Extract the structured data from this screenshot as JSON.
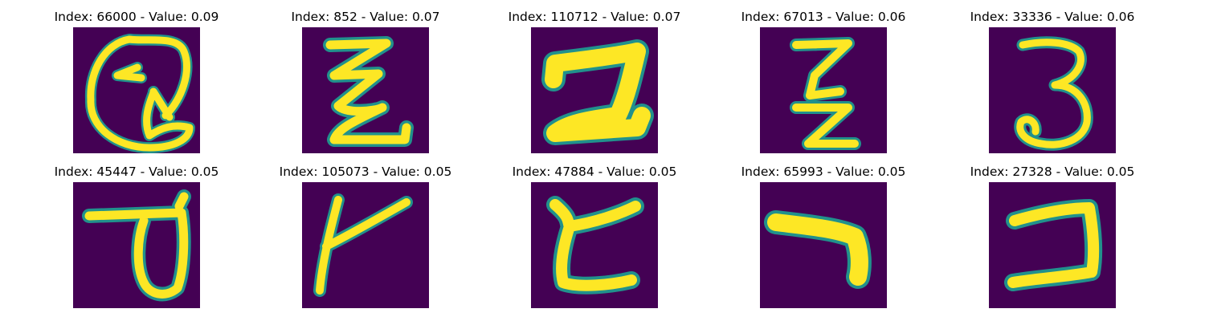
{
  "panels": [
    {
      "title": "Index: 66000 - Value: 0.09",
      "index": 66000,
      "value": 0.09,
      "glyph": "handwritten-Q-icon"
    },
    {
      "title": "Index: 852 - Value: 0.07",
      "index": 852,
      "value": 0.07,
      "glyph": "handwritten-zigzag-icon"
    },
    {
      "title": "Index: 110712 - Value: 0.07",
      "index": 110712,
      "value": 0.07,
      "glyph": "handwritten-bold-stroke-icon"
    },
    {
      "title": "Index: 67013 - Value: 0.06",
      "index": 67013,
      "value": 0.06,
      "glyph": "handwritten-crossed-z-icon"
    },
    {
      "title": "Index: 33336 - Value: 0.06",
      "index": 33336,
      "value": 0.06,
      "glyph": "handwritten-3-icon"
    },
    {
      "title": "Index: 45447 - Value: 0.05",
      "index": 45447,
      "value": 0.05,
      "glyph": "handwritten-loop-icon"
    },
    {
      "title": "Index: 105073 - Value: 0.05",
      "index": 105073,
      "value": 0.05,
      "glyph": "handwritten-y-icon"
    },
    {
      "title": "Index: 47884 - Value: 0.05",
      "index": 47884,
      "value": 0.05,
      "glyph": "handwritten-c-icon"
    },
    {
      "title": "Index: 65993 - Value: 0.05",
      "index": 65993,
      "value": 0.05,
      "glyph": "handwritten-angle-icon"
    },
    {
      "title": "Index: 27328 - Value: 0.05",
      "index": 27328,
      "value": 0.05,
      "glyph": "handwritten-reverse-c-icon"
    }
  ],
  "colors": {
    "background": "#440154",
    "stroke": "#fde725",
    "edge": "#21918c",
    "edge_alt": "#5ec962"
  }
}
